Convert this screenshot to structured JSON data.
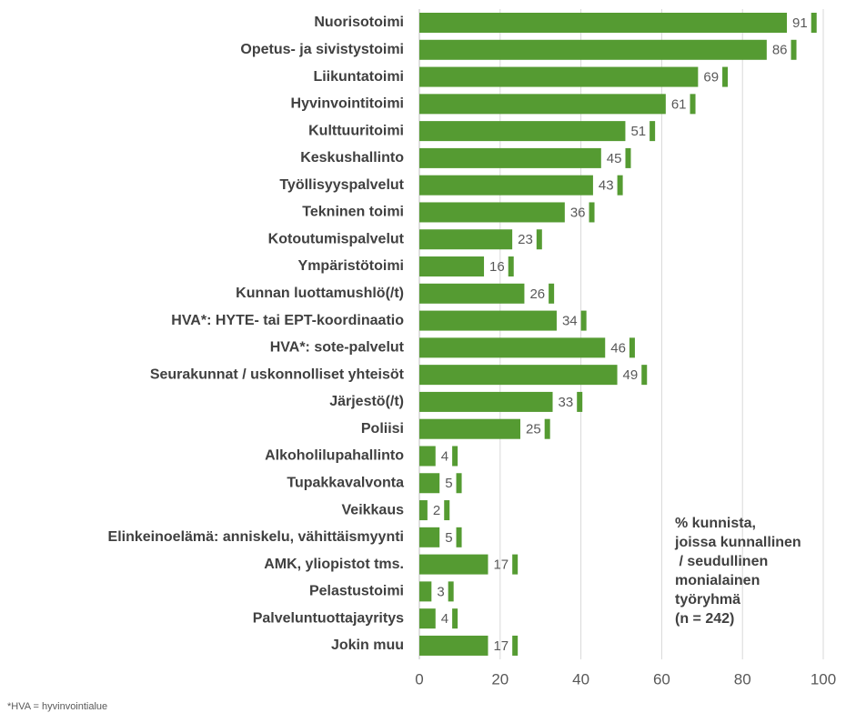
{
  "chart_data": {
    "type": "barh",
    "categories": [
      "Nuorisotoimi",
      "Opetus- ja sivistystoimi",
      "Liikuntatoimi",
      "Hyvinvointitoimi",
      "Kulttuuritoimi",
      "Keskushallinto",
      "Työllisyyspalvelut",
      "Tekninen toimi",
      "Kotoutumispalvelut",
      "Ympäristötoimi",
      "Kunnan luottamushlö(/t)",
      "HVA*: HYTE- tai EPT-koordinaatio",
      "HVA*: sote-palvelut",
      "Seurakunnat / uskonnolliset yhteisöt",
      "Järjestö(/t)",
      "Poliisi",
      "Alkoholilupahallinto",
      "Tupakkavalvonta",
      "Veikkaus",
      "Elinkeinoelämä: anniskelu, vähittäismyynti",
      "AMK, yliopistot tms.",
      "Pelastustoimi",
      "Palveluntuottajayritys",
      "Jokin muu"
    ],
    "values": [
      91,
      86,
      69,
      61,
      51,
      45,
      43,
      36,
      23,
      16,
      26,
      34,
      46,
      49,
      33,
      25,
      4,
      5,
      2,
      5,
      17,
      3,
      4,
      17
    ],
    "color": "#559b32",
    "xlim": [
      0,
      100
    ],
    "xticks": [
      0,
      20,
      40,
      60,
      80,
      100
    ],
    "grid": true,
    "annotation": [
      "% kunnista,",
      "joissa kunnallinen",
      " / seudullinen",
      "monialainen",
      "työryhmä",
      "(n = 242)"
    ],
    "footnote": "*HVA = hyvinvointialue"
  }
}
